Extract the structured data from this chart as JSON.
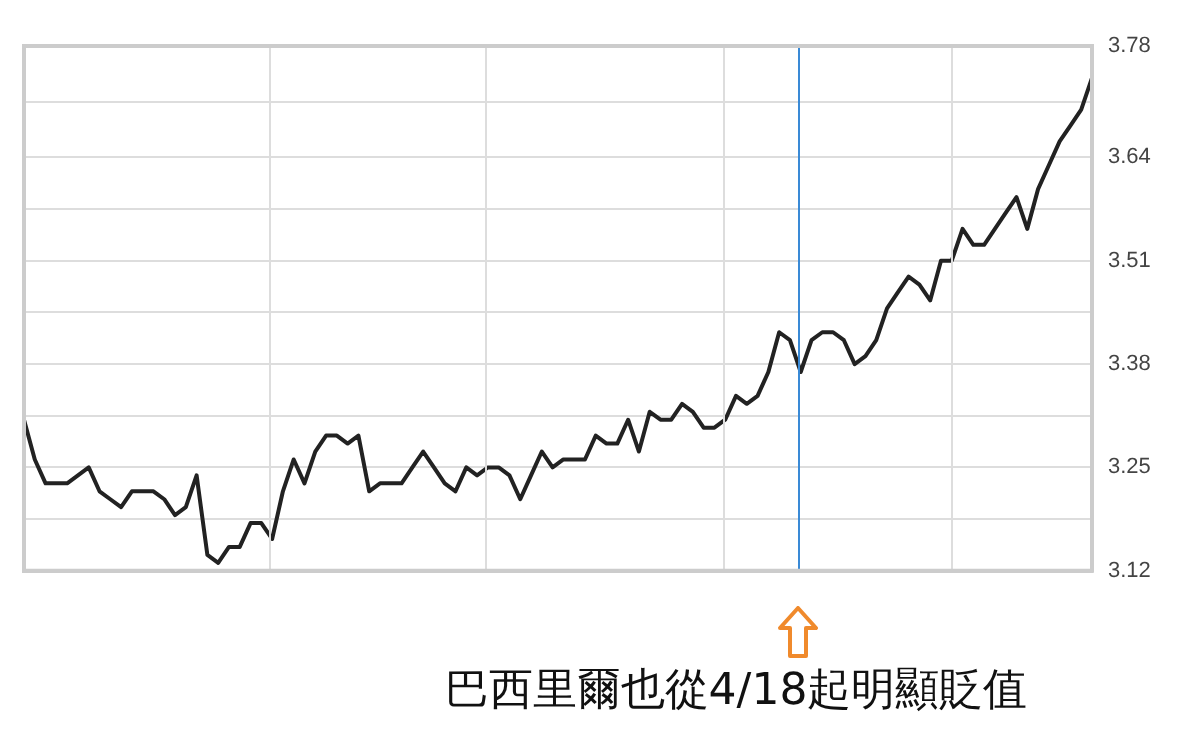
{
  "chart_data": {
    "type": "line",
    "categories": [
      null,
      null,
      null,
      null,
      null,
      null,
      null,
      null,
      null,
      null,
      null,
      null,
      null,
      null,
      null,
      null,
      null,
      null,
      null,
      null,
      null,
      null,
      null,
      null,
      null,
      null,
      null,
      null,
      null,
      null,
      null,
      null,
      null,
      null,
      null,
      null,
      null,
      null,
      null,
      null,
      null,
      null,
      null,
      null,
      null,
      null,
      null,
      null,
      null,
      null,
      null,
      null,
      null,
      null,
      null,
      null,
      null,
      null,
      null,
      null,
      null,
      null,
      null,
      null,
      null,
      null,
      null,
      null,
      null,
      null,
      null,
      null,
      null,
      null,
      null,
      null,
      null,
      null,
      null,
      null,
      null,
      null,
      null,
      null,
      null,
      null,
      null,
      null,
      null,
      null,
      null,
      null,
      null,
      null,
      null,
      null,
      null,
      null,
      null,
      null
    ],
    "series": [
      {
        "color": "#222222",
        "values": [
          3.31,
          3.26,
          3.23,
          3.23,
          3.23,
          3.24,
          3.25,
          3.22,
          3.21,
          3.2,
          3.22,
          3.22,
          3.22,
          3.21,
          3.19,
          3.2,
          3.24,
          3.14,
          3.13,
          3.15,
          3.15,
          3.18,
          3.18,
          3.16,
          3.22,
          3.26,
          3.23,
          3.27,
          3.29,
          3.29,
          3.28,
          3.29,
          3.22,
          3.23,
          3.23,
          3.23,
          3.25,
          3.27,
          3.25,
          3.23,
          3.22,
          3.25,
          3.24,
          3.25,
          3.25,
          3.24,
          3.21,
          3.24,
          3.27,
          3.25,
          3.26,
          3.26,
          3.26,
          3.29,
          3.28,
          3.28,
          3.31,
          3.27,
          3.32,
          3.31,
          3.31,
          3.33,
          3.32,
          3.3,
          3.3,
          3.31,
          3.34,
          3.33,
          3.34,
          3.37,
          3.42,
          3.41,
          3.37,
          3.41,
          3.42,
          3.42,
          3.41,
          3.38,
          3.39,
          3.41,
          3.45,
          3.47,
          3.49,
          3.48,
          3.46,
          3.51,
          3.51,
          3.55,
          3.53,
          3.53,
          3.55,
          3.57,
          3.59,
          3.55,
          3.6,
          3.63,
          3.66,
          3.68,
          3.7,
          3.74
        ]
      }
    ],
    "ylim": [
      3.12,
      3.78
    ],
    "yticks": [
      3.12,
      {
        "value": 3.185,
        "label": null
      },
      3.25,
      {
        "value": 3.315,
        "label": null
      },
      3.38,
      {
        "value": 3.445,
        "label": null
      },
      3.51,
      {
        "value": 3.575,
        "label": null
      },
      3.64,
      {
        "value": 3.71,
        "label": null
      },
      3.78
    ],
    "tick_labels": "y",
    "grid": "y",
    "legend": false,
    "marker": "none",
    "line_style": "solid",
    "annotations": [
      "巴西里爾也從4/18起明顯貶值"
    ]
  }
}
